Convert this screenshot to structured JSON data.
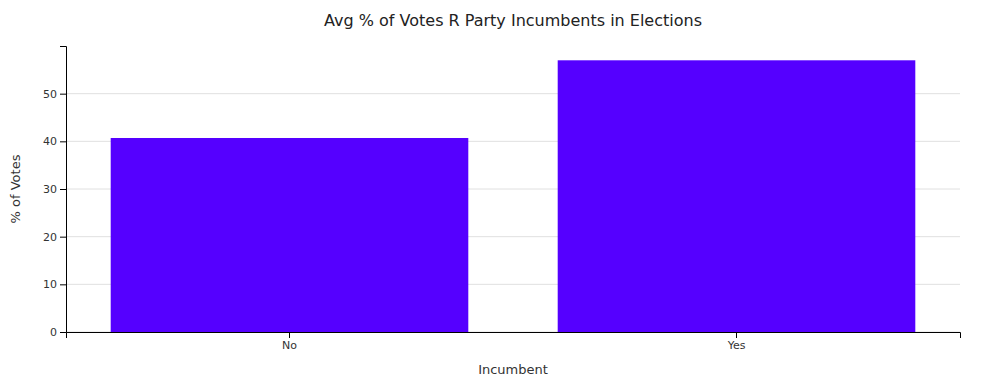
{
  "chart_data": {
    "type": "bar",
    "title": "Avg % of Votes R Party Incumbents in Elections",
    "categories": [
      "No",
      "Yes"
    ],
    "values": [
      40.7,
      57.0
    ],
    "color": "#5500ff",
    "xlabel": "Incumbent",
    "ylabel": "% of Votes",
    "ylim": [
      0,
      60
    ],
    "yticks": [
      0,
      10,
      20,
      30,
      40,
      50
    ],
    "grid": true
  }
}
